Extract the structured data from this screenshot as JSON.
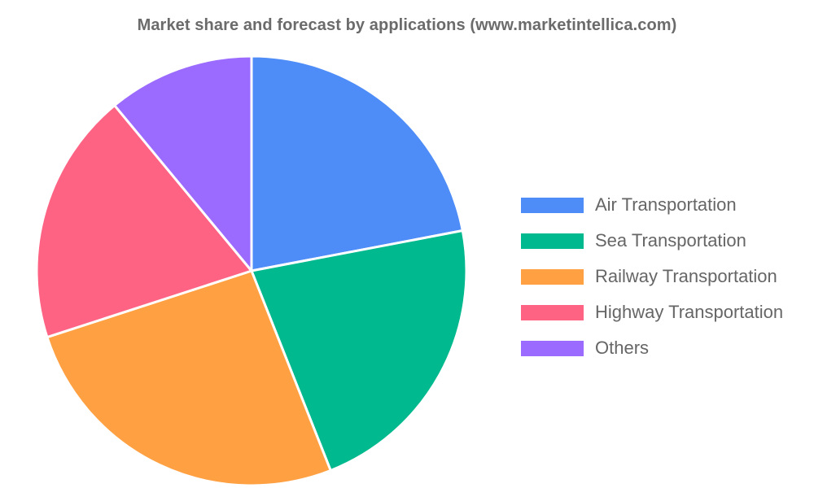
{
  "chart_data": {
    "type": "pie",
    "title": "Market share and forecast by applications (www.marketintellica.com)",
    "categories": [
      "Air Transportation",
      "Sea Transportation",
      "Railway Transportation",
      "Highway Transportation",
      "Others"
    ],
    "values": [
      22,
      22,
      26,
      19,
      11
    ],
    "unit": "%",
    "colors": [
      "#4e8cf8",
      "#00b98e",
      "#ffa042",
      "#ff6384",
      "#9b6bff"
    ],
    "legend_position": "right"
  }
}
